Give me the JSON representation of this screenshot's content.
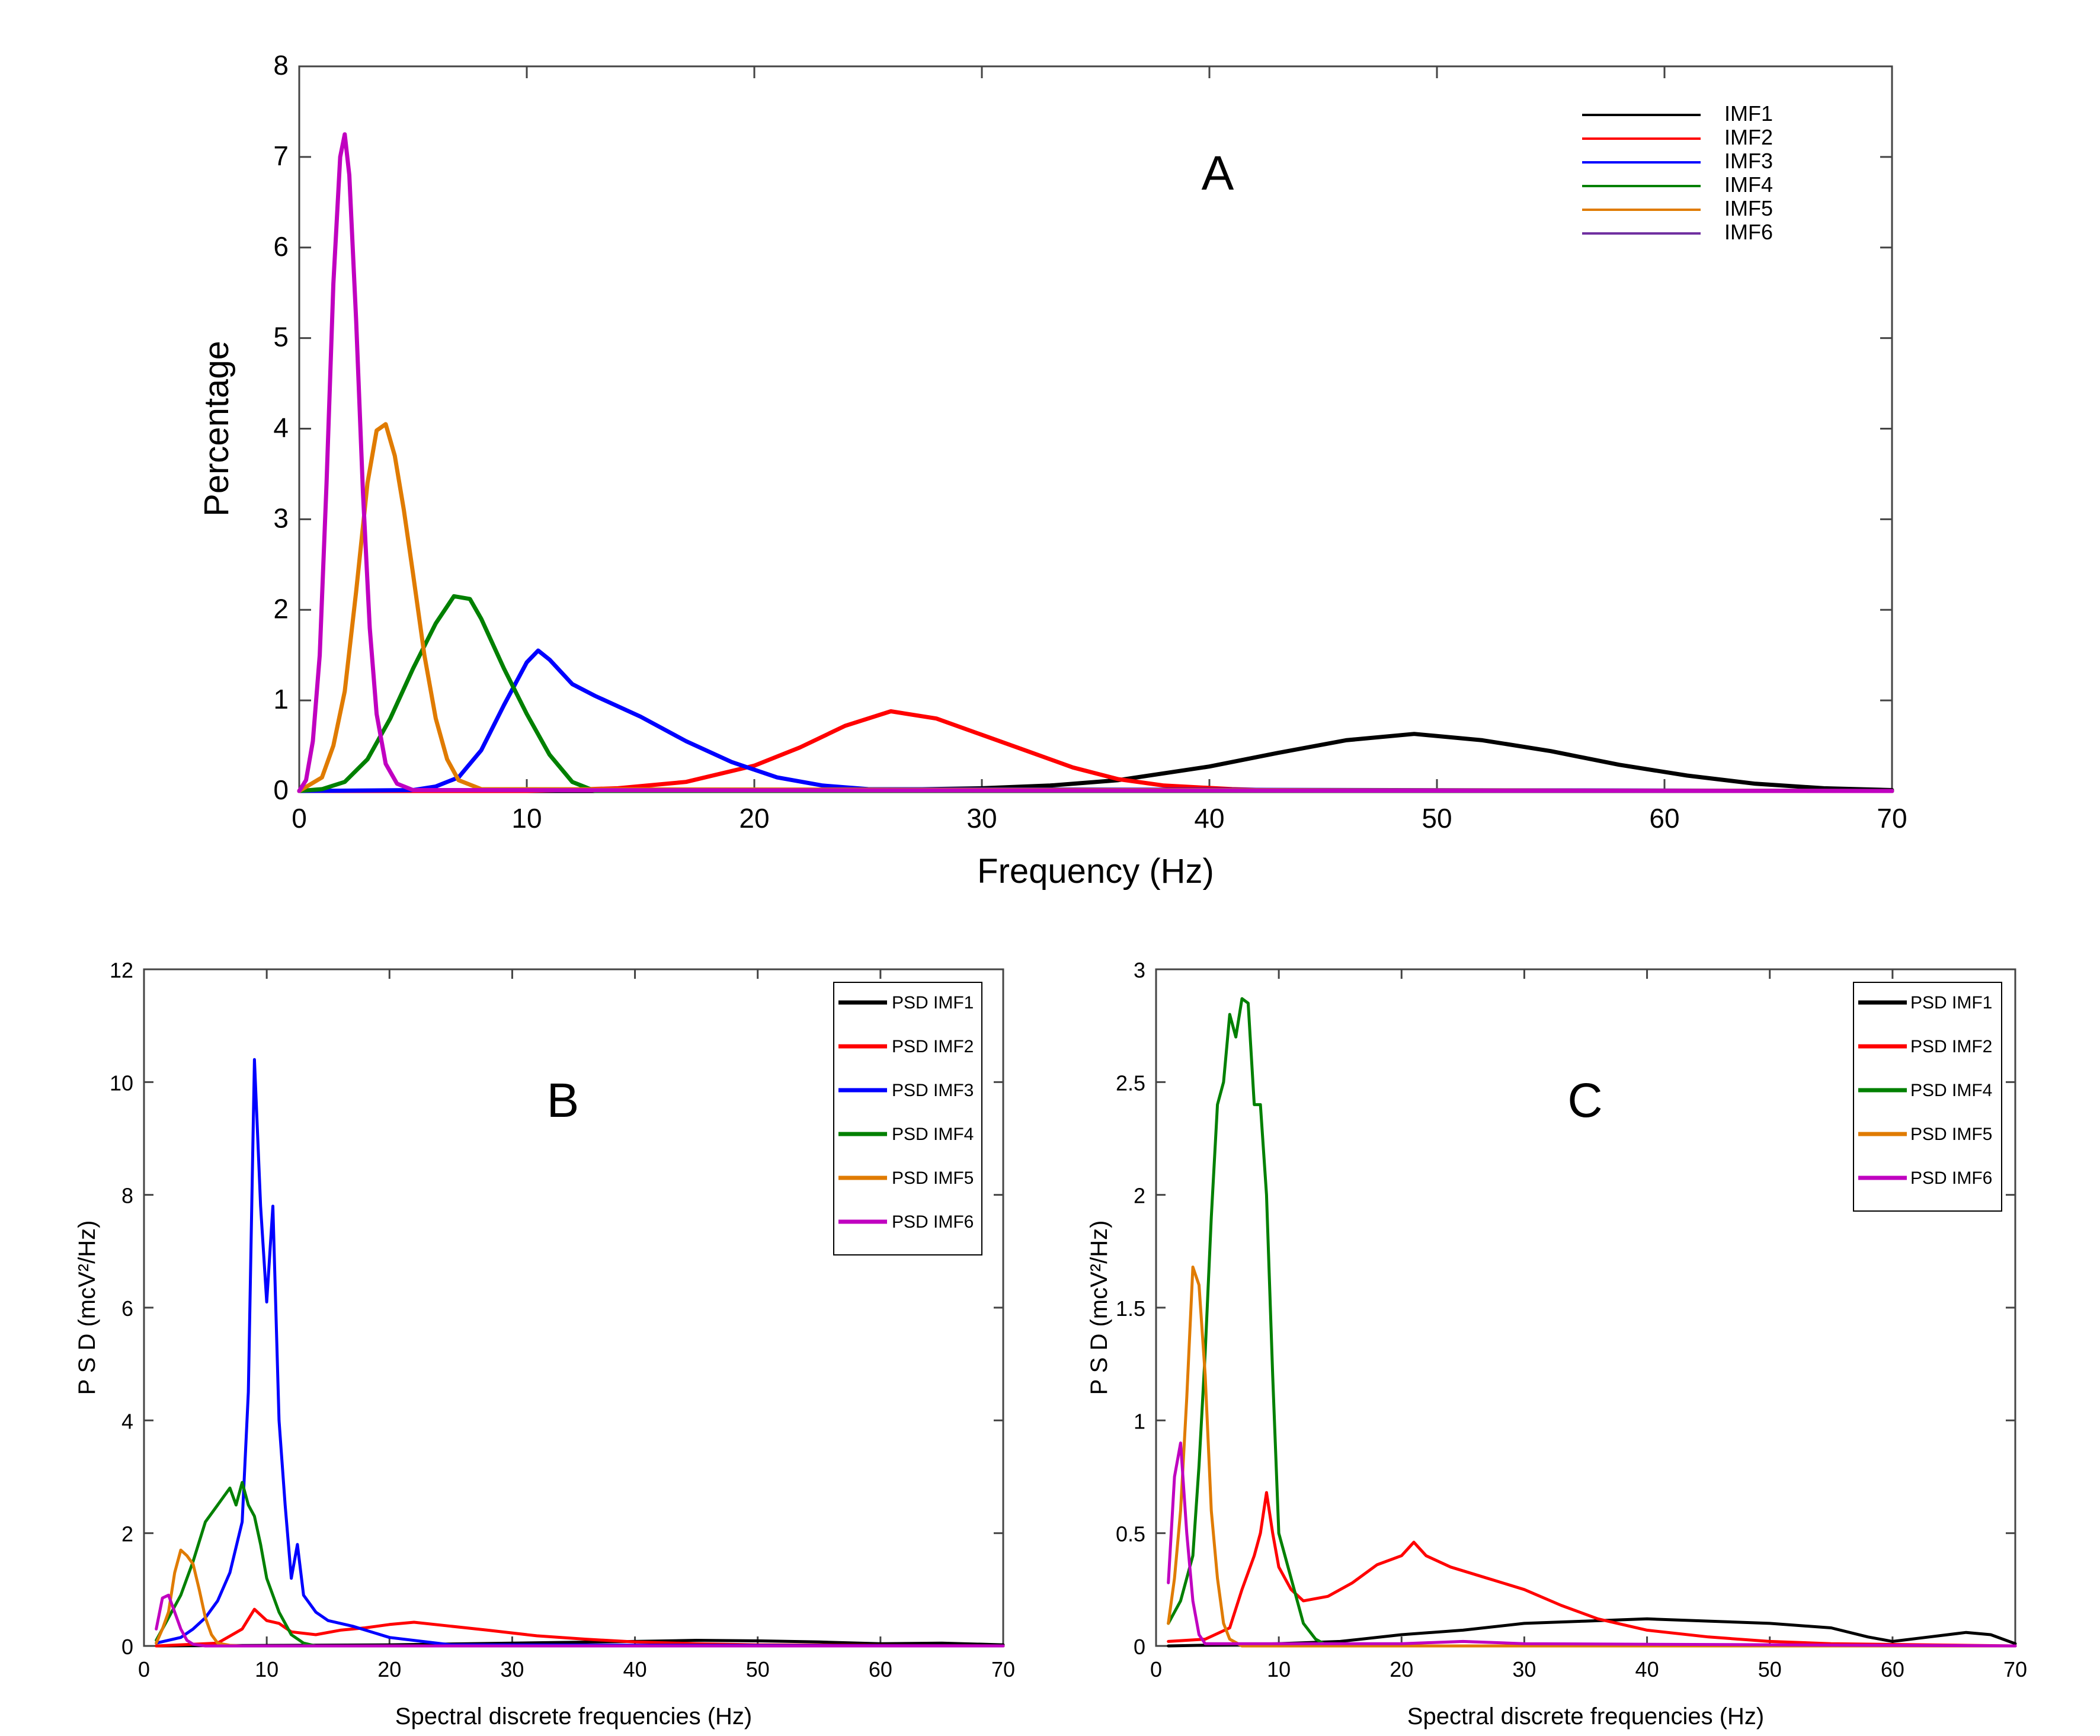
{
  "chart_data": [
    {
      "panel": "A",
      "type": "line",
      "title": "A",
      "xlabel": "Frequency (Hz)",
      "ylabel": "Percentage",
      "xlim": [
        0,
        70
      ],
      "ylim": [
        0,
        8
      ],
      "xticks": [
        0,
        10,
        20,
        30,
        40,
        50,
        60,
        70
      ],
      "yticks": [
        0,
        1,
        2,
        3,
        4,
        5,
        6,
        7,
        8
      ],
      "legend_position": "top-right",
      "series": [
        {
          "name": "IMF1",
          "color": "#000000",
          "x": [
            0,
            20,
            25,
            30,
            33,
            36,
            40,
            43,
            46,
            49,
            52,
            55,
            58,
            61,
            64,
            67,
            70
          ],
          "y": [
            0,
            0,
            0.01,
            0.03,
            0.06,
            0.12,
            0.27,
            0.42,
            0.56,
            0.63,
            0.56,
            0.44,
            0.29,
            0.17,
            0.08,
            0.03,
            0.01
          ]
        },
        {
          "name": "IMF2",
          "color": "#ff0000",
          "x": [
            0,
            10,
            14,
            17,
            20,
            22,
            24,
            26,
            28,
            30,
            32,
            34,
            36,
            38,
            41,
            44,
            70
          ],
          "y": [
            0,
            0,
            0.03,
            0.1,
            0.28,
            0.48,
            0.72,
            0.88,
            0.8,
            0.62,
            0.44,
            0.26,
            0.13,
            0.06,
            0.02,
            0,
            0
          ]
        },
        {
          "name": "IMF3",
          "color": "#0000ff",
          "x": [
            0,
            5,
            6,
            7,
            8,
            9,
            10,
            10.5,
            11,
            12,
            13,
            15,
            17,
            19,
            21,
            23,
            25,
            70
          ],
          "y": [
            0,
            0.01,
            0.05,
            0.15,
            0.45,
            0.95,
            1.42,
            1.55,
            1.45,
            1.18,
            1.05,
            0.82,
            0.55,
            0.32,
            0.15,
            0.06,
            0.02,
            0
          ]
        },
        {
          "name": "IMF4",
          "color": "#008000",
          "x": [
            0,
            1,
            2,
            3,
            4,
            5,
            6,
            6.8,
            7.5,
            8,
            9,
            10,
            11,
            12,
            13,
            70
          ],
          "y": [
            0,
            0.02,
            0.1,
            0.35,
            0.8,
            1.35,
            1.85,
            2.15,
            2.12,
            1.9,
            1.35,
            0.85,
            0.4,
            0.1,
            0,
            0
          ]
        },
        {
          "name": "IMF5",
          "color": "#e07b00",
          "x": [
            0,
            1,
            1.5,
            2,
            2.5,
            3,
            3.4,
            3.8,
            4.2,
            4.6,
            5,
            5.5,
            6,
            6.5,
            7,
            8,
            70
          ],
          "y": [
            0,
            0.15,
            0.5,
            1.1,
            2.2,
            3.4,
            3.98,
            4.05,
            3.7,
            3.1,
            2.4,
            1.5,
            0.8,
            0.35,
            0.12,
            0.02,
            0
          ]
        },
        {
          "name": "IMF6",
          "color": "#c000c0",
          "legend_color": "#7030a0",
          "x": [
            0,
            0.3,
            0.6,
            0.9,
            1.2,
            1.5,
            1.8,
            2.0,
            2.2,
            2.5,
            2.8,
            3.1,
            3.4,
            3.8,
            4.3,
            5,
            70
          ],
          "y": [
            0,
            0.12,
            0.55,
            1.5,
            3.4,
            5.6,
            7.0,
            7.25,
            6.8,
            5.2,
            3.3,
            1.8,
            0.85,
            0.3,
            0.08,
            0.01,
            0
          ]
        }
      ]
    },
    {
      "panel": "B",
      "type": "line",
      "title": "B",
      "xlabel": "Spectral discrete frequencies (Hz)",
      "ylabel": "P S D  (mcV²/Hz)",
      "xlim": [
        0,
        70
      ],
      "ylim": [
        0,
        12
      ],
      "xticks": [
        0,
        10,
        20,
        30,
        40,
        50,
        60,
        70
      ],
      "yticks": [
        0,
        2,
        4,
        6,
        8,
        10,
        12
      ],
      "legend_position": "top-right",
      "series": [
        {
          "name": "PSD IMF1",
          "color": "#000000",
          "x": [
            1,
            20,
            30,
            40,
            45,
            50,
            55,
            60,
            65,
            70
          ],
          "y": [
            0,
            0.02,
            0.05,
            0.08,
            0.1,
            0.09,
            0.07,
            0.04,
            0.05,
            0.02
          ]
        },
        {
          "name": "PSD IMF2",
          "color": "#ff0000",
          "x": [
            1,
            6,
            8,
            9,
            10,
            11,
            12,
            14,
            16,
            18,
            20,
            22,
            25,
            28,
            32,
            36,
            40,
            45,
            50,
            70
          ],
          "y": [
            0,
            0.05,
            0.3,
            0.65,
            0.45,
            0.4,
            0.25,
            0.2,
            0.28,
            0.32,
            0.38,
            0.42,
            0.35,
            0.28,
            0.18,
            0.12,
            0.07,
            0.04,
            0.02,
            0
          ]
        },
        {
          "name": "PSD IMF3",
          "color": "#0000ff",
          "x": [
            1,
            3,
            4,
            5,
            6,
            7,
            8,
            8.5,
            9,
            9.5,
            10,
            10.5,
            11,
            11.5,
            12,
            12.5,
            13,
            14,
            15,
            17,
            20,
            25,
            70
          ],
          "y": [
            0.05,
            0.15,
            0.3,
            0.5,
            0.8,
            1.3,
            2.2,
            4.5,
            10.4,
            7.8,
            6.1,
            7.8,
            4.0,
            2.5,
            1.2,
            1.8,
            0.9,
            0.6,
            0.45,
            0.35,
            0.15,
            0.02,
            0
          ]
        },
        {
          "name": "PSD IMF4",
          "color": "#008000",
          "x": [
            1,
            2,
            3,
            4,
            5,
            6,
            7,
            7.5,
            8,
            8.5,
            9,
            9.5,
            10,
            11,
            12,
            13,
            14,
            70
          ],
          "y": [
            0.1,
            0.5,
            0.9,
            1.5,
            2.2,
            2.5,
            2.8,
            2.5,
            2.9,
            2.5,
            2.3,
            1.8,
            1.2,
            0.6,
            0.2,
            0.05,
            0,
            0
          ]
        },
        {
          "name": "PSD IMF5",
          "color": "#e07b00",
          "x": [
            1,
            1.5,
            2,
            2.5,
            3,
            3.5,
            4,
            4.5,
            5,
            5.5,
            6,
            7,
            8,
            70
          ],
          "y": [
            0.05,
            0.3,
            0.6,
            1.3,
            1.7,
            1.6,
            1.45,
            1.0,
            0.5,
            0.2,
            0.05,
            0.01,
            0,
            0
          ]
        },
        {
          "name": "PSD IMF6",
          "color": "#c000c0",
          "x": [
            1,
            1.5,
            2,
            2.5,
            3,
            3.5,
            4,
            5,
            70
          ],
          "y": [
            0.3,
            0.85,
            0.9,
            0.6,
            0.3,
            0.1,
            0.03,
            0,
            0
          ]
        }
      ]
    },
    {
      "panel": "C",
      "type": "line",
      "title": "C",
      "xlabel": "Spectral discrete frequencies (Hz)",
      "ylabel": "P S D  (mcV²/Hz)",
      "xlim": [
        0,
        70
      ],
      "ylim": [
        0,
        3
      ],
      "xticks": [
        0,
        10,
        20,
        30,
        40,
        50,
        60,
        70
      ],
      "yticks": [
        0,
        0.5,
        1,
        1.5,
        2,
        2.5,
        3
      ],
      "ytick_labels": [
        "0",
        "0.5",
        "1",
        "1.5",
        "2",
        "2.5",
        "3"
      ],
      "legend_position": "top-right",
      "series": [
        {
          "name": "PSD IMF1",
          "color": "#000000",
          "x": [
            1,
            10,
            15,
            20,
            25,
            30,
            35,
            40,
            45,
            50,
            55,
            58,
            60,
            63,
            66,
            68,
            70
          ],
          "y": [
            0,
            0.01,
            0.02,
            0.05,
            0.07,
            0.1,
            0.11,
            0.12,
            0.11,
            0.1,
            0.08,
            0.04,
            0.02,
            0.04,
            0.06,
            0.05,
            0.01
          ]
        },
        {
          "name": "PSD IMF2",
          "color": "#ff0000",
          "x": [
            1,
            4,
            6,
            7,
            8,
            8.5,
            9,
            9.5,
            10,
            11,
            12,
            14,
            16,
            18,
            20,
            21,
            22,
            24,
            27,
            30,
            33,
            36,
            40,
            45,
            50,
            55,
            70
          ],
          "y": [
            0.02,
            0.03,
            0.08,
            0.25,
            0.4,
            0.5,
            0.68,
            0.5,
            0.35,
            0.25,
            0.2,
            0.22,
            0.28,
            0.36,
            0.4,
            0.46,
            0.4,
            0.35,
            0.3,
            0.25,
            0.18,
            0.12,
            0.07,
            0.04,
            0.02,
            0.01,
            0
          ]
        },
        {
          "name": "PSD IMF4",
          "color": "#008000",
          "x": [
            1,
            2,
            3,
            3.5,
            4,
            4.5,
            5,
            5.5,
            6,
            6.5,
            7,
            7.5,
            8,
            8.5,
            9,
            9.5,
            10,
            10.5,
            11,
            12,
            13,
            14,
            70
          ],
          "y": [
            0.1,
            0.2,
            0.4,
            0.8,
            1.3,
            1.9,
            2.4,
            2.5,
            2.8,
            2.7,
            2.87,
            2.85,
            2.4,
            2.4,
            2.0,
            1.2,
            0.5,
            0.4,
            0.3,
            0.1,
            0.03,
            0,
            0
          ]
        },
        {
          "name": "PSD IMF5",
          "color": "#e07b00",
          "x": [
            1,
            1.5,
            2,
            2.5,
            3,
            3.5,
            4,
            4.5,
            5,
            5.5,
            6,
            7,
            70
          ],
          "y": [
            0.1,
            0.3,
            0.6,
            1.1,
            1.68,
            1.6,
            1.2,
            0.6,
            0.3,
            0.1,
            0.03,
            0,
            0
          ]
        },
        {
          "name": "PSD IMF6",
          "color": "#c000c0",
          "x": [
            1,
            1.5,
            2,
            2.5,
            3,
            3.5,
            4,
            20,
            25,
            30,
            70
          ],
          "y": [
            0.28,
            0.75,
            0.9,
            0.5,
            0.2,
            0.05,
            0.01,
            0.01,
            0.02,
            0.01,
            0
          ]
        }
      ]
    }
  ]
}
